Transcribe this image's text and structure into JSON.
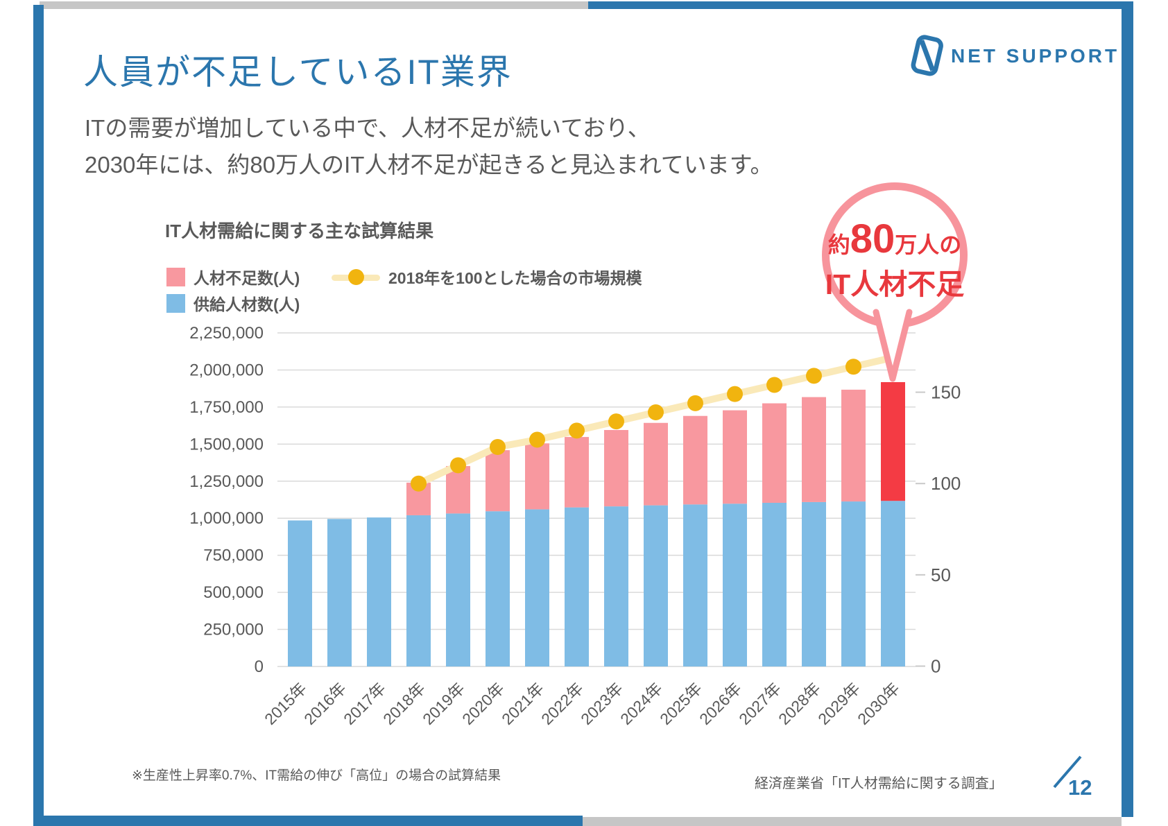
{
  "colors": {
    "brand_blue": "#2B76AD",
    "frame_gray": "#C6C6C6",
    "text_gray": "#595959",
    "gridline": "#D9D9D9",
    "bar_blue": "#7FBCE5",
    "bar_pink": "#F8989F",
    "bar_red": "#F43B44",
    "line_pale": "#FAE9B8",
    "line_dot": "#F1B40F",
    "callout_border": "#F7949C",
    "callout_red": "#E8383D"
  },
  "header": {
    "title": "人員が不足しているIT業界",
    "logo_text": "NET SUPPORT"
  },
  "intro": {
    "line1": "ITの需要が増加している中で、人材不足が続いており、",
    "line2": "2030年には、約80万人のIT人材不足が起きると見込まれています。"
  },
  "callout": {
    "prefix": "約",
    "big_number": "80",
    "suffix": "万人の",
    "line2": "IT人材不足"
  },
  "chart_data": {
    "type": "bar",
    "stacked": true,
    "title": "IT人材需給に関する主な試算結果",
    "grid": "horizontal",
    "categories": [
      "2015年",
      "2016年",
      "2017年",
      "2018年",
      "2019年",
      "2020年",
      "2021年",
      "2022年",
      "2023年",
      "2024年",
      "2025年",
      "2026年",
      "2027年",
      "2028年",
      "2029年",
      "2030年"
    ],
    "series": [
      {
        "name": "供給人材数(人)",
        "color_key": "bar_blue",
        "values": [
          985000,
          995000,
          1005000,
          1020000,
          1032000,
          1047000,
          1060000,
          1073000,
          1080000,
          1087000,
          1093000,
          1098000,
          1104000,
          1109000,
          1113000,
          1117000
        ]
      },
      {
        "name": "人材不足数(人)",
        "color_key": "bar_pink",
        "values": [
          0,
          0,
          0,
          220000,
          320000,
          412000,
          445000,
          475000,
          515000,
          556000,
          597000,
          630000,
          671000,
          708000,
          754000,
          801000
        ]
      }
    ],
    "line_series": {
      "name": "2018年を100とした場合の市場規模",
      "color_key": "line_dot",
      "values": [
        null,
        null,
        null,
        100,
        110,
        120,
        124,
        129,
        134,
        139,
        144,
        149,
        154,
        159,
        164,
        169
      ]
    },
    "left_axis": {
      "min": 0,
      "max": 2250000,
      "step": 250000
    },
    "right_axis": {
      "ticks": [
        0,
        50,
        100,
        150
      ]
    },
    "highlight_year": "2030年",
    "highlight_color_key": "bar_red",
    "legend": [
      {
        "label": "人材不足数(人)",
        "swatch": "pink"
      },
      {
        "label": "2018年を100とした場合の市場規模",
        "swatch": "line"
      },
      {
        "label": "供給人材数(人)",
        "swatch": "blue"
      }
    ],
    "legend_position": "top-left"
  },
  "footer": {
    "note_left": "※生産性上昇率0.7%、IT需給の伸び「高位」の場合の試算結果",
    "source_right": "経済産業省「IT人材需給に関する調査」",
    "page_number": "12"
  }
}
